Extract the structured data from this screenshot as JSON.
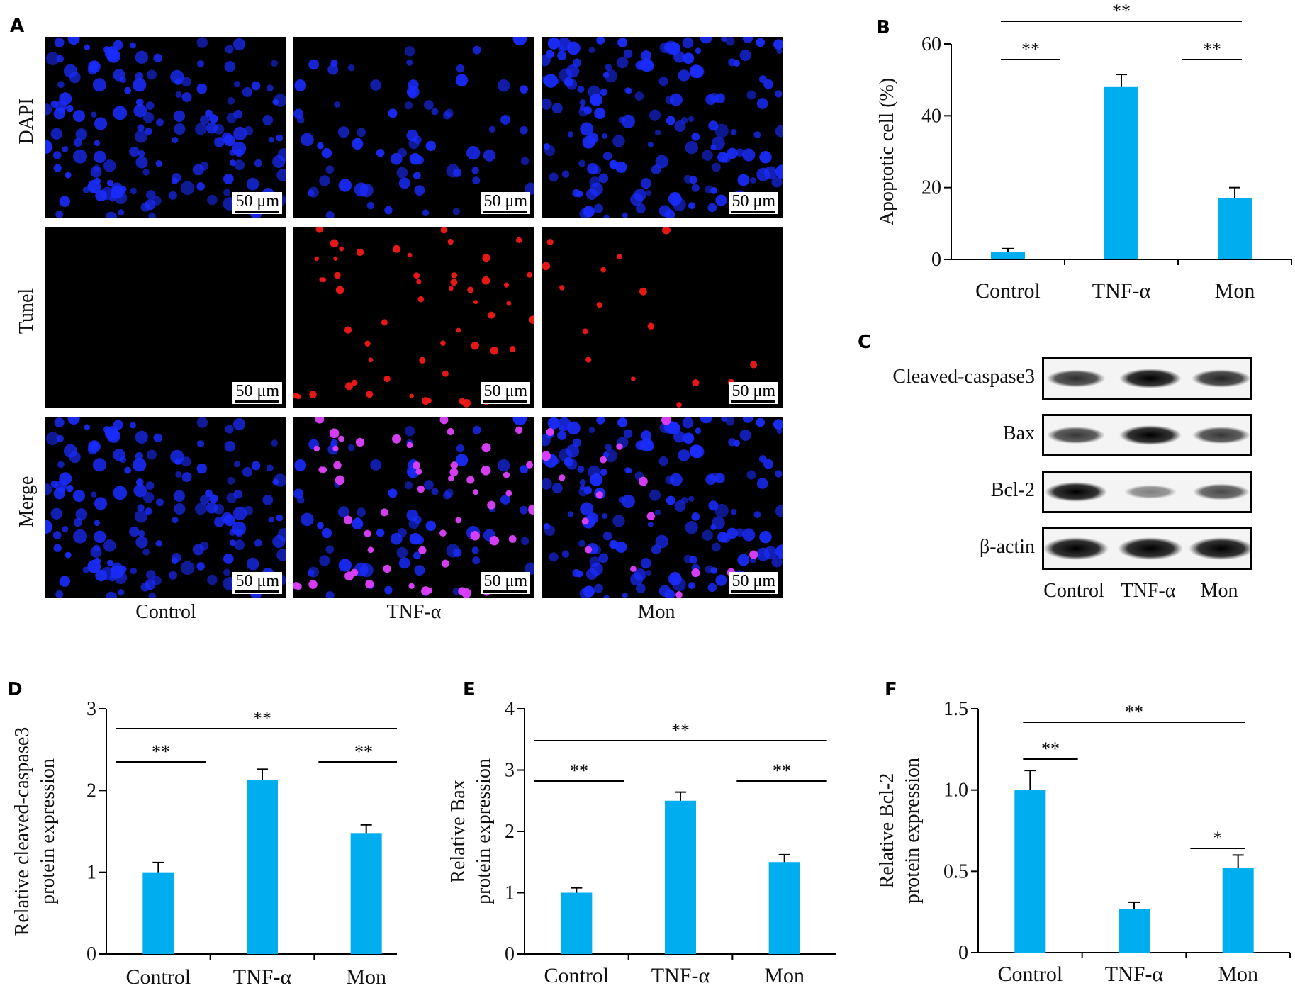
{
  "panels": {
    "A": "A",
    "B": "B",
    "C": "C",
    "D": "D",
    "E": "E",
    "F": "F"
  },
  "microscopy": {
    "row_labels": [
      "DAPI",
      "Tunel",
      "Merge"
    ],
    "column_labels": [
      "Control",
      "TNF-α",
      "Mon"
    ],
    "scale_bar_text": "50 μm",
    "colors": {
      "dapi": "#1a2cff",
      "tunel": "#ff1a1a",
      "merge_overlap": "#e040ff",
      "background": "#000000"
    }
  },
  "western_blot": {
    "proteins": [
      "Cleaved-caspase3",
      "Bax",
      "Bcl-2",
      "β-actin"
    ],
    "groups": [
      "Control",
      "TNF-α",
      "Mon"
    ],
    "band_intensity": [
      [
        0.75,
        1.0,
        0.8
      ],
      [
        0.7,
        1.0,
        0.7
      ],
      [
        1.0,
        0.3,
        0.6
      ],
      [
        1.0,
        1.0,
        1.0
      ]
    ]
  },
  "chart_data": [
    {
      "panel": "B",
      "type": "bar",
      "categories": [
        "Control",
        "TNF-α",
        "Mon"
      ],
      "values": [
        2,
        48,
        17
      ],
      "errors": [
        1,
        3.5,
        3
      ],
      "ylabel": "Apoptotic cell (%)",
      "ylim": [
        0,
        60
      ],
      "yticks": [
        0,
        20,
        40,
        60
      ],
      "bar_color": "#00adef",
      "significance": [
        {
          "from": 0,
          "to": 2,
          "label": "**"
        },
        {
          "from": 0,
          "to": 1,
          "label": "**"
        },
        {
          "from": 1,
          "to": 2,
          "label": "**"
        }
      ]
    },
    {
      "panel": "D",
      "type": "bar",
      "categories": [
        "Control",
        "TNF-α",
        "Mon"
      ],
      "values": [
        1.0,
        2.13,
        1.48
      ],
      "errors": [
        0.12,
        0.13,
        0.1
      ],
      "ylabel": [
        "Relative cleaved-caspase3",
        "protein expression"
      ],
      "ylim": [
        0,
        3
      ],
      "yticks": [
        0,
        1,
        2,
        3
      ],
      "bar_color": "#00adef",
      "significance": [
        {
          "from": 0,
          "to": 2,
          "label": "**"
        },
        {
          "from": 0,
          "to": 1,
          "label": "**"
        },
        {
          "from": 1,
          "to": 2,
          "label": "**"
        }
      ]
    },
    {
      "panel": "E",
      "type": "bar",
      "categories": [
        "Control",
        "TNF-α",
        "Mon"
      ],
      "values": [
        1.0,
        2.5,
        1.5
      ],
      "errors": [
        0.08,
        0.14,
        0.12
      ],
      "ylabel": [
        "Relative Bax",
        "protein expression"
      ],
      "ylim": [
        0,
        4
      ],
      "yticks": [
        0,
        1,
        2,
        3,
        4
      ],
      "bar_color": "#00adef",
      "significance": [
        {
          "from": 0,
          "to": 2,
          "label": "**"
        },
        {
          "from": 0,
          "to": 1,
          "label": "**"
        },
        {
          "from": 1,
          "to": 2,
          "label": "**"
        }
      ]
    },
    {
      "panel": "F",
      "type": "bar",
      "categories": [
        "Control",
        "TNF-α",
        "Mon"
      ],
      "values": [
        1.0,
        0.27,
        0.52
      ],
      "errors": [
        0.12,
        0.04,
        0.08
      ],
      "ylabel": [
        "Relative Bcl-2",
        "protein expression"
      ],
      "ylim": [
        0,
        1.5
      ],
      "yticks": [
        0,
        0.5,
        1.0,
        1.5
      ],
      "ytick_labels": [
        "0",
        "0.5",
        "1.0",
        "1.5"
      ],
      "bar_color": "#00adef",
      "significance": [
        {
          "from": 0,
          "to": 2,
          "label": "**"
        },
        {
          "from": 0,
          "to": 1,
          "label": "**"
        },
        {
          "from": 1,
          "to": 2,
          "label": "*"
        }
      ]
    }
  ]
}
